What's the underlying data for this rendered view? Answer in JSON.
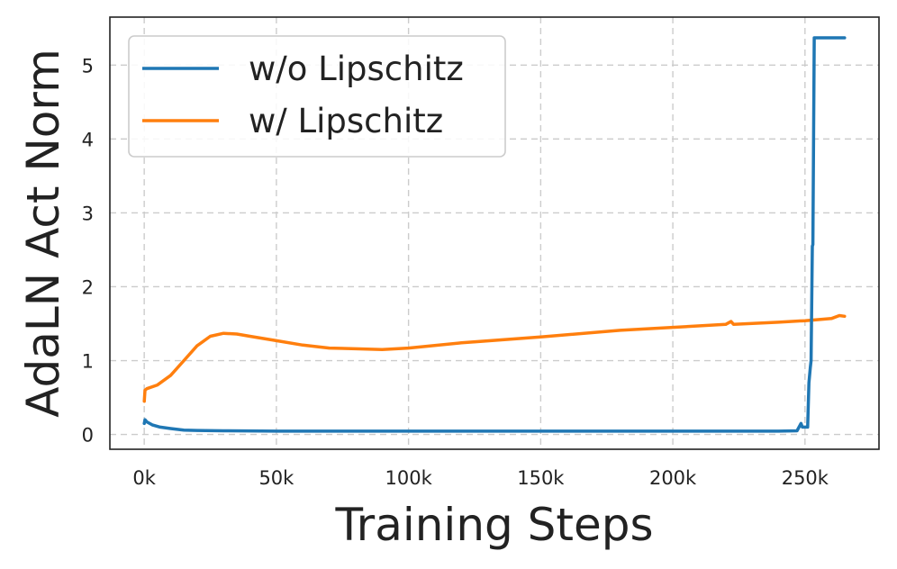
{
  "chart_data": {
    "type": "line",
    "xlabel": "Training Steps",
    "ylabel": "AdaLN Act Norm",
    "xlim": [
      -13000,
      278000
    ],
    "ylim": [
      -0.2,
      5.65
    ],
    "xticks": [
      0,
      50000,
      100000,
      150000,
      200000,
      250000
    ],
    "xtick_labels": [
      "0k",
      "50k",
      "100k",
      "150k",
      "200k",
      "250k"
    ],
    "yticks": [
      0,
      1,
      2,
      3,
      4,
      5
    ],
    "ytick_labels": [
      "0",
      "1",
      "2",
      "3",
      "4",
      "5"
    ],
    "grid": true,
    "legend_position": "upper-left",
    "series": [
      {
        "name": "w/o Lipschitz",
        "color": "#1f77b4",
        "x": [
          0,
          300,
          1000,
          3000,
          6000,
          10000,
          15000,
          20000,
          30000,
          50000,
          100000,
          150000,
          200000,
          240000,
          247000,
          248500,
          249000,
          250000,
          251000,
          251500,
          252000,
          252300,
          252800,
          253000,
          253500,
          254000,
          260000,
          265000
        ],
        "y": [
          0.15,
          0.2,
          0.17,
          0.13,
          0.1,
          0.08,
          0.06,
          0.055,
          0.05,
          0.045,
          0.045,
          0.045,
          0.045,
          0.045,
          0.05,
          0.15,
          0.1,
          0.1,
          0.1,
          0.7,
          0.9,
          1.0,
          2.55,
          2.57,
          5.37,
          5.37,
          5.37,
          5.37
        ]
      },
      {
        "name": "w/ Lipschitz",
        "color": "#ff7f0e",
        "x": [
          0,
          300,
          1000,
          5000,
          10000,
          15000,
          20000,
          25000,
          30000,
          35000,
          40000,
          50000,
          60000,
          70000,
          80000,
          90000,
          100000,
          120000,
          150000,
          180000,
          200000,
          220000,
          222000,
          223000,
          240000,
          250000,
          260000,
          263000,
          265000
        ],
        "y": [
          0.45,
          0.6,
          0.62,
          0.67,
          0.8,
          1.0,
          1.2,
          1.33,
          1.37,
          1.36,
          1.33,
          1.27,
          1.21,
          1.17,
          1.16,
          1.15,
          1.17,
          1.24,
          1.32,
          1.41,
          1.45,
          1.49,
          1.53,
          1.49,
          1.52,
          1.54,
          1.57,
          1.61,
          1.6
        ]
      }
    ]
  }
}
